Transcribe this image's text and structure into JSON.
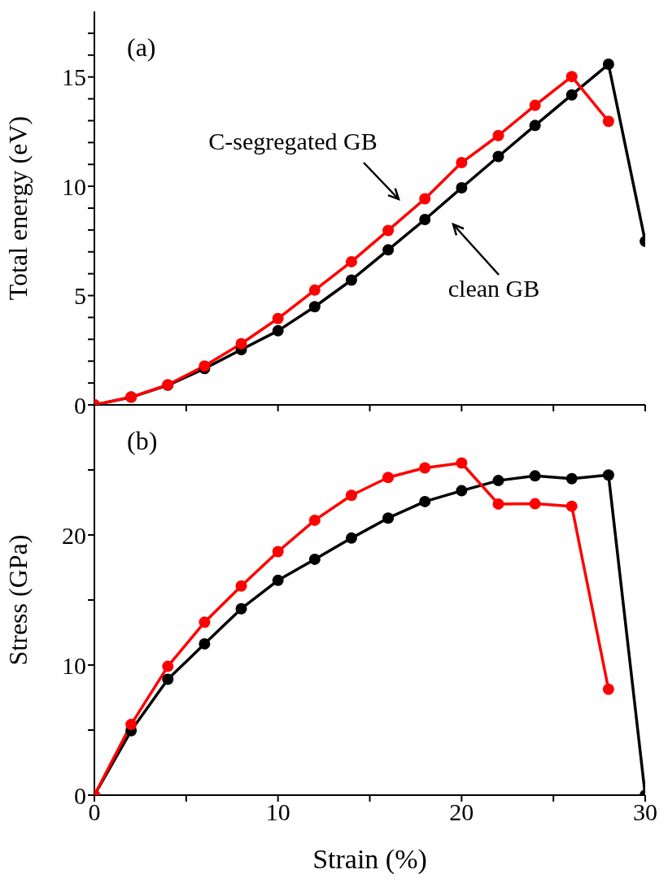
{
  "chart_data": [
    {
      "type": "line",
      "title": "(a)",
      "ylabel": "Total energy  (eV)",
      "x": [
        0,
        2,
        4,
        6,
        8,
        10,
        12,
        14,
        16,
        18,
        20,
        22,
        24,
        26,
        28,
        30
      ],
      "xlim": [
        0,
        30
      ],
      "xticks": [
        0,
        {
          "value": 5,
          "label": null
        },
        10,
        {
          "value": 15,
          "label": null
        },
        20,
        {
          "value": 25,
          "label": null
        },
        30
      ],
      "ylim": [
        0,
        18
      ],
      "yticks": [
        0,
        {
          "value": 1,
          "label": null
        },
        {
          "value": 2,
          "label": null
        },
        {
          "value": 3,
          "label": null
        },
        {
          "value": 4,
          "label": null
        },
        5,
        {
          "value": 6,
          "label": null
        },
        {
          "value": 7,
          "label": null
        },
        {
          "value": 8,
          "label": null
        },
        {
          "value": 9,
          "label": null
        },
        10,
        {
          "value": 11,
          "label": null
        },
        {
          "value": 12,
          "label": null
        },
        {
          "value": 13,
          "label": null
        },
        {
          "value": 14,
          "label": null
        },
        15,
        {
          "value": 16,
          "label": null
        },
        {
          "value": 17,
          "label": null
        }
      ],
      "tick_labels": "y",
      "marker": "circle",
      "line_style": "solid",
      "grid": false,
      "series": [
        {
          "color": "#000000",
          "values": [
            0,
            0.35,
            0.9,
            1.66,
            2.53,
            3.39,
            4.49,
            5.71,
            7.09,
            8.48,
            9.93,
            11.36,
            12.78,
            14.18,
            15.58,
            7.48
          ]
        },
        {
          "color": "#ff0000",
          "values": [
            0,
            0.36,
            0.92,
            1.78,
            2.8,
            3.95,
            5.25,
            6.55,
            7.98,
            9.43,
            11.08,
            12.32,
            13.7,
            15.02,
            12.97,
            null
          ]
        }
      ],
      "annotations": [
        "C-segregated GB",
        "clean GB"
      ]
    },
    {
      "type": "line",
      "title": "(b)",
      "xlabel": "Strain (%)",
      "ylabel": "Stress (GPa)",
      "x": [
        0,
        2,
        4,
        6,
        8,
        10,
        12,
        14,
        16,
        18,
        20,
        22,
        24,
        26,
        28,
        30
      ],
      "xlim": [
        0,
        30
      ],
      "xticks": [
        0,
        {
          "value": 5,
          "label": null
        },
        10,
        {
          "value": 15,
          "label": null
        },
        20,
        {
          "value": 25,
          "label": null
        },
        30
      ],
      "ylim": [
        0,
        30
      ],
      "yticks": [
        0,
        {
          "value": 5,
          "label": null
        },
        10,
        {
          "value": 15,
          "label": null
        },
        20,
        {
          "value": 25,
          "label": null
        }
      ],
      "marker": "circle",
      "line_style": "solid",
      "grid": false,
      "series": [
        {
          "color": "#000000",
          "values": [
            0,
            4.95,
            8.91,
            11.63,
            14.33,
            16.51,
            18.13,
            19.76,
            21.3,
            22.57,
            23.4,
            24.18,
            24.54,
            24.33,
            24.61,
            0
          ]
        },
        {
          "color": "#ff0000",
          "values": [
            0,
            5.43,
            9.9,
            13.29,
            16.08,
            18.72,
            21.13,
            23.05,
            24.42,
            25.16,
            25.53,
            22.38,
            22.4,
            22.21,
            8.14,
            null
          ]
        }
      ]
    }
  ]
}
